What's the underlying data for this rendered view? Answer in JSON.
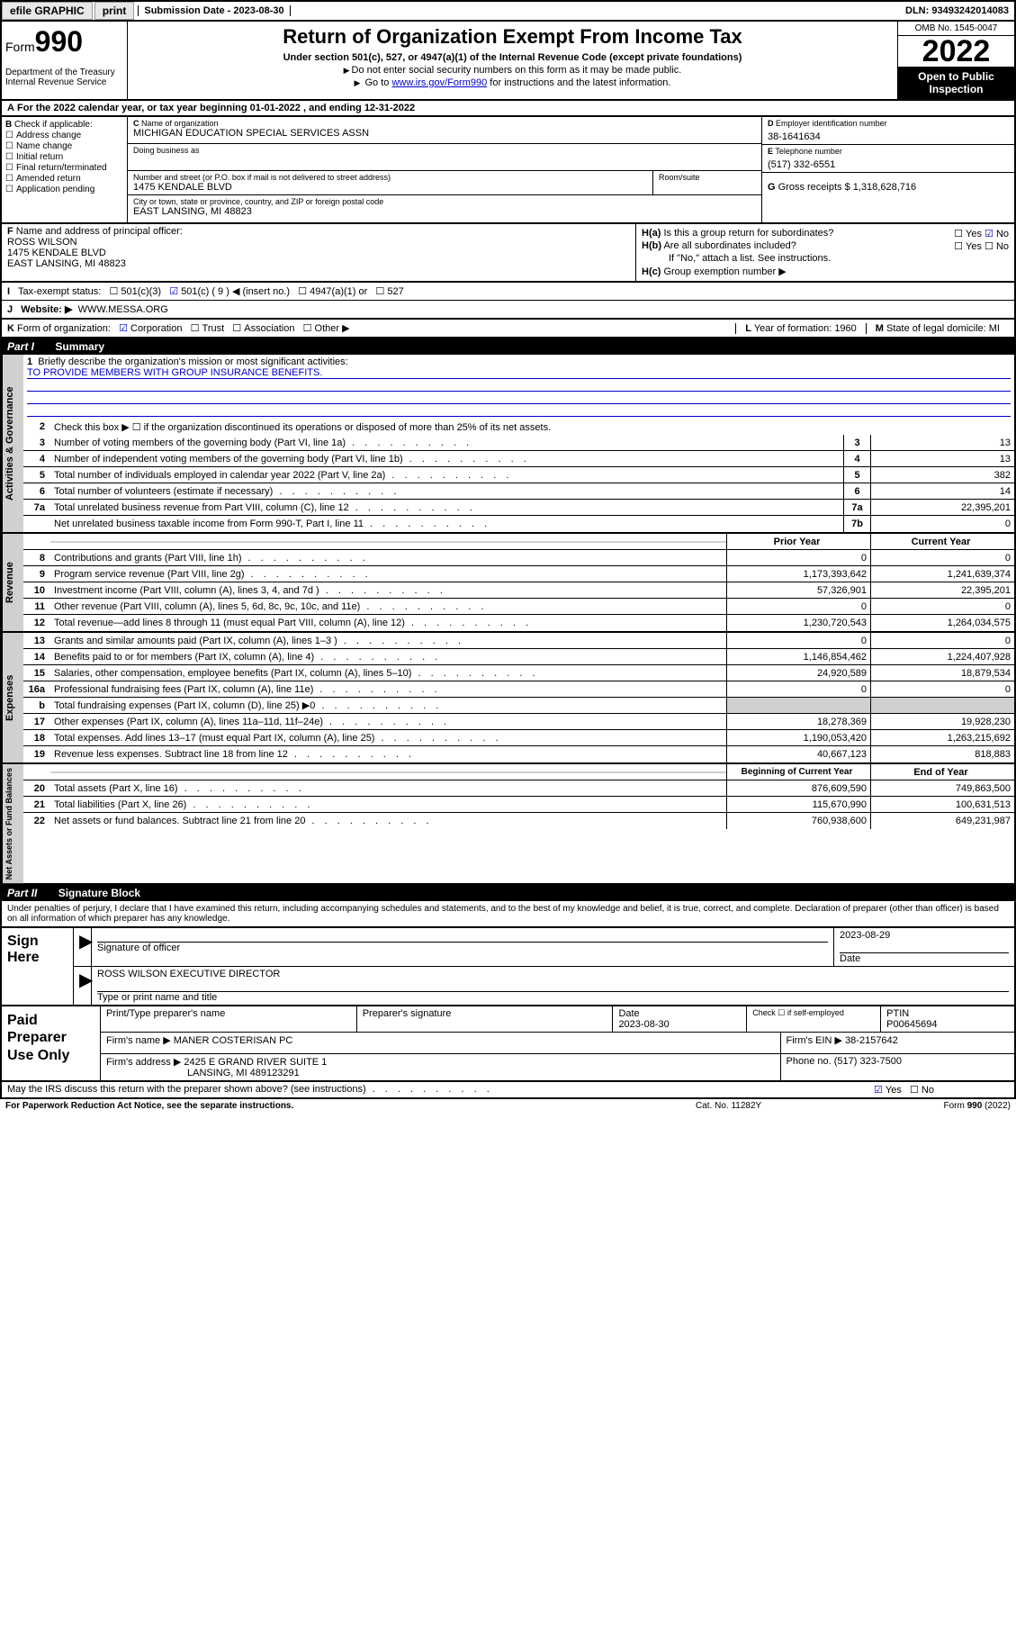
{
  "topbar": {
    "efile": "efile GRAPHIC",
    "print": "print",
    "submission_label": "Submission Date - ",
    "submission_date": "2023-08-30",
    "dln_label": "DLN: ",
    "dln": "93493242014083"
  },
  "header": {
    "form_label": "Form",
    "form_num": "990",
    "dept": "Department of the Treasury",
    "irs": "Internal Revenue Service",
    "title": "Return of Organization Exempt From Income Tax",
    "sub1": "Under section 501(c), 527, or 4947(a)(1) of the Internal Revenue Code (except private foundations)",
    "sub2": "Do not enter social security numbers on this form as it may be made public.",
    "sub3_pre": "Go to ",
    "sub3_link": "www.irs.gov/Form990",
    "sub3_post": " for instructions and the latest information.",
    "omb": "OMB No. 1545-0047",
    "year": "2022",
    "open": "Open to Public Inspection"
  },
  "row_a": {
    "text": "For the 2022 calendar year, or tax year beginning ",
    "begin": "01-01-2022",
    "mid": " , and ending ",
    "end": "12-31-2022",
    "prefix": "A"
  },
  "col_b": {
    "label": "Check if applicable:",
    "prefix": "B",
    "items": [
      "Address change",
      "Name change",
      "Initial return",
      "Final return/terminated",
      "Amended return",
      "Application pending"
    ]
  },
  "col_c": {
    "name_label": "Name of organization",
    "name": "MICHIGAN EDUCATION SPECIAL SERVICES ASSN",
    "prefix": "C",
    "dba_label": "Doing business as",
    "addr_label": "Number and street (or P.O. box if mail is not delivered to street address)",
    "room_label": "Room/suite",
    "addr": "1475 KENDALE BLVD",
    "city_label": "City or town, state or province, country, and ZIP or foreign postal code",
    "city": "EAST LANSING, MI  48823"
  },
  "col_de": {
    "d_label": "Employer identification number",
    "d_prefix": "D",
    "ein": "38-1641634",
    "e_label": "Telephone number",
    "e_prefix": "E",
    "phone": "(517) 332-6551",
    "g_label": "Gross receipts $ ",
    "g_prefix": "G",
    "gross": "1,318,628,716"
  },
  "col_f": {
    "prefix": "F",
    "label": "Name and address of principal officer:",
    "name": "ROSS WILSON",
    "addr1": "1475 KENDALE BLVD",
    "addr2": "EAST LANSING, MI  48823"
  },
  "col_h": {
    "ha_prefix": "H(a)",
    "ha": "Is this a group return for subordinates?",
    "ha_yes": "Yes",
    "ha_no": "No",
    "hb_prefix": "H(b)",
    "hb": "Are all subordinates included?",
    "hb_note": "If \"No,\" attach a list. See instructions.",
    "hc_prefix": "H(c)",
    "hc": "Group exemption number ▶"
  },
  "row_i": {
    "prefix": "I",
    "label": "Tax-exempt status:",
    "o1": "501(c)(3)",
    "o2": "501(c) ( 9 ) ◀ (insert no.)",
    "o3": "4947(a)(1) or",
    "o4": "527"
  },
  "row_j": {
    "prefix": "J",
    "label": "Website: ▶",
    "val": "WWW.MESSA.ORG"
  },
  "row_k": {
    "prefix": "K",
    "label": "Form of organization:",
    "o1": "Corporation",
    "o2": "Trust",
    "o3": "Association",
    "o4": "Other ▶",
    "l_label": "Year of formation: ",
    "l_prefix": "L",
    "l_val": "1960",
    "m_label": "State of legal domicile: ",
    "m_prefix": "M",
    "m_val": "MI"
  },
  "parts": {
    "p1": "Part I",
    "p1_title": "Summary",
    "p2": "Part II",
    "p2_title": "Signature Block"
  },
  "summary": {
    "tabs": [
      "Activities & Governance",
      "Revenue",
      "Expenses",
      "Net Assets or Fund Balances"
    ],
    "q1": "Briefly describe the organization's mission or most significant activities:",
    "mission": "TO PROVIDE MEMBERS WITH GROUP INSURANCE BENEFITS.",
    "q2": "Check this box ▶ ☐  if the organization discontinued its operations or disposed of more than 25% of its net assets.",
    "lines_gov": [
      {
        "n": "3",
        "d": "Number of voting members of the governing body (Part VI, line 1a)",
        "box": "3",
        "v": "13"
      },
      {
        "n": "4",
        "d": "Number of independent voting members of the governing body (Part VI, line 1b)",
        "box": "4",
        "v": "13"
      },
      {
        "n": "5",
        "d": "Total number of individuals employed in calendar year 2022 (Part V, line 2a)",
        "box": "5",
        "v": "382"
      },
      {
        "n": "6",
        "d": "Total number of volunteers (estimate if necessary)",
        "box": "6",
        "v": "14"
      },
      {
        "n": "7a",
        "d": "Total unrelated business revenue from Part VIII, column (C), line 12",
        "box": "7a",
        "v": "22,395,201"
      },
      {
        "n": "",
        "d": "Net unrelated business taxable income from Form 990-T, Part I, line 11",
        "box": "7b",
        "v": "0"
      }
    ],
    "col_hdr_prior": "Prior Year",
    "col_hdr_curr": "Current Year",
    "lines_rev": [
      {
        "n": "8",
        "d": "Contributions and grants (Part VIII, line 1h)",
        "p": "0",
        "c": "0"
      },
      {
        "n": "9",
        "d": "Program service revenue (Part VIII, line 2g)",
        "p": "1,173,393,642",
        "c": "1,241,639,374"
      },
      {
        "n": "10",
        "d": "Investment income (Part VIII, column (A), lines 3, 4, and 7d )",
        "p": "57,326,901",
        "c": "22,395,201"
      },
      {
        "n": "11",
        "d": "Other revenue (Part VIII, column (A), lines 5, 6d, 8c, 9c, 10c, and 11e)",
        "p": "0",
        "c": "0"
      },
      {
        "n": "12",
        "d": "Total revenue—add lines 8 through 11 (must equal Part VIII, column (A), line 12)",
        "p": "1,230,720,543",
        "c": "1,264,034,575"
      }
    ],
    "lines_exp": [
      {
        "n": "13",
        "d": "Grants and similar amounts paid (Part IX, column (A), lines 1–3 )",
        "p": "0",
        "c": "0"
      },
      {
        "n": "14",
        "d": "Benefits paid to or for members (Part IX, column (A), line 4)",
        "p": "1,146,854,462",
        "c": "1,224,407,928"
      },
      {
        "n": "15",
        "d": "Salaries, other compensation, employee benefits (Part IX, column (A), lines 5–10)",
        "p": "24,920,589",
        "c": "18,879,534"
      },
      {
        "n": "16a",
        "d": "Professional fundraising fees (Part IX, column (A), line 11e)",
        "p": "0",
        "c": "0"
      },
      {
        "n": "b",
        "d": "Total fundraising expenses (Part IX, column (D), line 25) ▶0",
        "p": "",
        "c": "",
        "grey": true
      },
      {
        "n": "17",
        "d": "Other expenses (Part IX, column (A), lines 11a–11d, 11f–24e)",
        "p": "18,278,369",
        "c": "19,928,230"
      },
      {
        "n": "18",
        "d": "Total expenses. Add lines 13–17 (must equal Part IX, column (A), line 25)",
        "p": "1,190,053,420",
        "c": "1,263,215,692"
      },
      {
        "n": "19",
        "d": "Revenue less expenses. Subtract line 18 from line 12",
        "p": "40,667,123",
        "c": "818,883"
      }
    ],
    "col_hdr_begin": "Beginning of Current Year",
    "col_hdr_end": "End of Year",
    "lines_net": [
      {
        "n": "20",
        "d": "Total assets (Part X, line 16)",
        "p": "876,609,590",
        "c": "749,863,500"
      },
      {
        "n": "21",
        "d": "Total liabilities (Part X, line 26)",
        "p": "115,670,990",
        "c": "100,631,513"
      },
      {
        "n": "22",
        "d": "Net assets or fund balances. Subtract line 21 from line 20",
        "p": "760,938,600",
        "c": "649,231,987"
      }
    ]
  },
  "sig": {
    "decl": "Under penalties of perjury, I declare that I have examined this return, including accompanying schedules and statements, and to the best of my knowledge and belief, it is true, correct, and complete. Declaration of preparer (other than officer) is based on all information of which preparer has any knowledge.",
    "sign_here": "Sign Here",
    "sig_officer": "Signature of officer",
    "date_label": "Date",
    "date": "2023-08-29",
    "name_title": "ROSS WILSON  EXECUTIVE DIRECTOR",
    "type_label": "Type or print name and title"
  },
  "paid": {
    "label": "Paid Preparer Use Only",
    "h1": "Print/Type preparer's name",
    "h2": "Preparer's signature",
    "h3": "Date",
    "h3v": "2023-08-30",
    "h4": "Check ☐ if self-employed",
    "h5": "PTIN",
    "ptin": "P00645694",
    "firm_name_label": "Firm's name    ▶",
    "firm_name": "MANER COSTERISAN PC",
    "firm_ein_label": "Firm's EIN ▶",
    "firm_ein": "38-2157642",
    "firm_addr_label": "Firm's address ▶",
    "firm_addr1": "2425 E GRAND RIVER SUITE 1",
    "firm_addr2": "LANSING, MI  489123291",
    "phone_label": "Phone no. ",
    "phone": "(517) 323-7500"
  },
  "bottom": {
    "q": "May the IRS discuss this return with the preparer shown above? (see instructions)",
    "yes": "Yes",
    "no": "No"
  },
  "footer": {
    "left": "For Paperwork Reduction Act Notice, see the separate instructions.",
    "mid": "Cat. No. 11282Y",
    "right": "Form 990 (2022)"
  }
}
